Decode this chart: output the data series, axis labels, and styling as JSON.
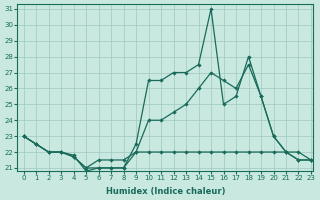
{
  "xlabel": "Humidex (Indice chaleur)",
  "bg_color": "#c8e8e0",
  "line_color": "#1a6b5a",
  "grid_color": "#a0c8c0",
  "xlim": [
    -0.5,
    23.2
  ],
  "ylim": [
    20.8,
    31.3
  ],
  "xticks": [
    0,
    1,
    2,
    3,
    4,
    5,
    6,
    7,
    8,
    9,
    10,
    11,
    12,
    13,
    14,
    15,
    16,
    17,
    18,
    19,
    20,
    21,
    22,
    23
  ],
  "yticks": [
    21,
    22,
    23,
    24,
    25,
    26,
    27,
    28,
    29,
    30,
    31
  ],
  "line1_x": [
    0,
    1,
    2,
    3,
    4,
    5,
    6,
    7,
    8,
    9,
    10,
    11,
    12,
    13,
    14,
    15,
    16,
    17,
    18,
    19,
    20,
    21,
    22,
    23
  ],
  "line1_y": [
    23,
    22.5,
    22,
    22,
    21.8,
    20.8,
    21,
    21,
    21,
    22.5,
    26.5,
    26.5,
    27,
    27,
    27.5,
    31,
    25,
    25.5,
    28,
    25.5,
    23,
    22,
    21.5,
    21.5
  ],
  "line2_x": [
    0,
    1,
    2,
    3,
    4,
    5,
    6,
    7,
    8,
    9,
    10,
    11,
    12,
    13,
    14,
    15,
    16,
    17,
    18,
    19,
    20,
    21,
    22,
    23
  ],
  "line2_y": [
    23,
    22.5,
    22,
    22,
    21.7,
    21,
    21,
    21,
    21,
    22,
    24,
    24,
    24.5,
    25,
    26,
    27,
    26.5,
    26,
    27.5,
    25.5,
    23,
    22,
    21.5,
    21.5
  ],
  "line3_x": [
    0,
    1,
    2,
    3,
    4,
    5,
    6,
    7,
    8,
    9,
    10,
    11,
    12,
    13,
    14,
    15,
    16,
    17,
    18,
    19,
    20,
    21,
    22,
    23
  ],
  "line3_y": [
    23,
    22.5,
    22,
    22,
    21.7,
    21,
    21.5,
    21.5,
    21.5,
    22,
    22,
    22,
    22,
    22,
    22,
    22,
    22,
    22,
    22,
    22,
    22,
    22,
    22,
    21.5
  ]
}
